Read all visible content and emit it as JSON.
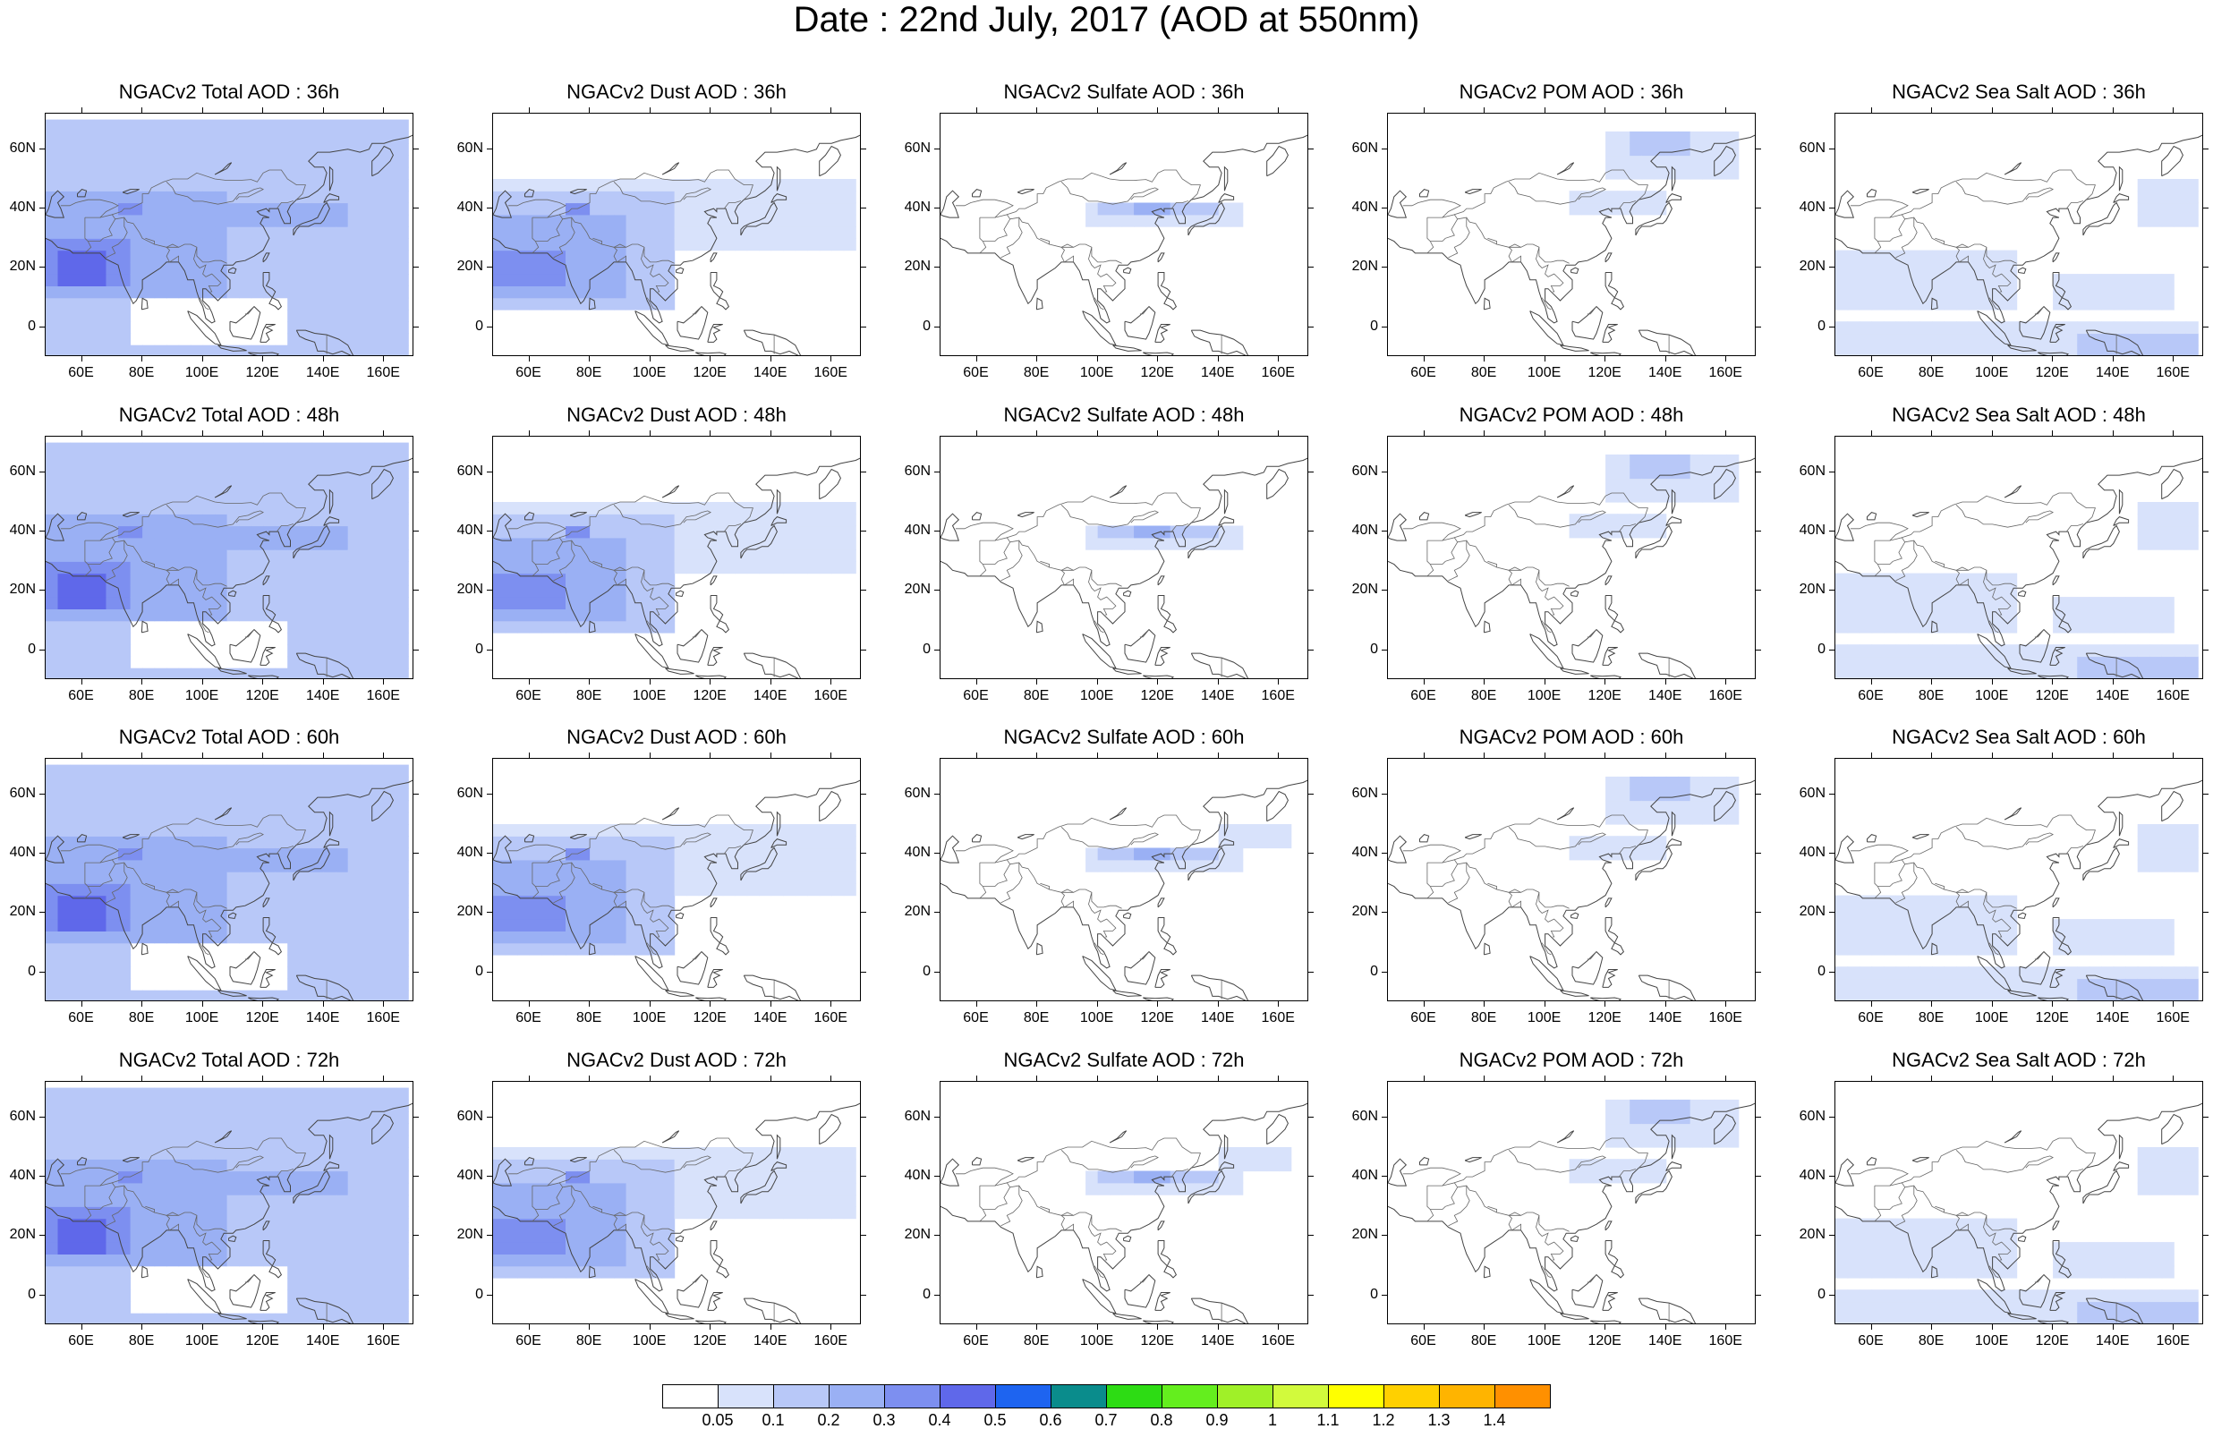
{
  "title": "Date : 22nd July, 2017 (AOD at 550nm)",
  "lat_ticks": [
    "60N",
    "40N",
    "20N",
    "0"
  ],
  "lon_ticks": [
    "60E",
    "80E",
    "100E",
    "120E",
    "140E",
    "160E"
  ],
  "panels": [
    {
      "title": "NGACv2 Total AOD : 36h",
      "species": "total",
      "hour": 36
    },
    {
      "title": "NGACv2 Dust AOD : 36h",
      "species": "dust",
      "hour": 36
    },
    {
      "title": "NGACv2 Sulfate AOD : 36h",
      "species": "sulfate",
      "hour": 36
    },
    {
      "title": "NGACv2 POM AOD : 36h",
      "species": "pom",
      "hour": 36
    },
    {
      "title": "NGACv2 Sea Salt AOD : 36h",
      "species": "seasalt",
      "hour": 36
    },
    {
      "title": "NGACv2 Total AOD : 48h",
      "species": "total",
      "hour": 48
    },
    {
      "title": "NGACv2 Dust AOD : 48h",
      "species": "dust",
      "hour": 48
    },
    {
      "title": "NGACv2 Sulfate AOD : 48h",
      "species": "sulfate",
      "hour": 48
    },
    {
      "title": "NGACv2 POM AOD : 48h",
      "species": "pom",
      "hour": 48
    },
    {
      "title": "NGACv2 Sea Salt AOD : 48h",
      "species": "seasalt",
      "hour": 48
    },
    {
      "title": "NGACv2 Total AOD : 60h",
      "species": "total",
      "hour": 60
    },
    {
      "title": "NGACv2 Dust AOD : 60h",
      "species": "dust",
      "hour": 60
    },
    {
      "title": "NGACv2 Sulfate AOD : 60h",
      "species": "sulfate",
      "hour": 60
    },
    {
      "title": "NGACv2 POM AOD : 60h",
      "species": "pom",
      "hour": 60
    },
    {
      "title": "NGACv2 Sea Salt AOD : 60h",
      "species": "seasalt",
      "hour": 60
    },
    {
      "title": "NGACv2 Total AOD : 72h",
      "species": "total",
      "hour": 72
    },
    {
      "title": "NGACv2 Dust AOD : 72h",
      "species": "dust",
      "hour": 72
    },
    {
      "title": "NGACv2 Sulfate AOD : 72h",
      "species": "sulfate",
      "hour": 72
    },
    {
      "title": "NGACv2 POM AOD : 72h",
      "species": "pom",
      "hour": 72
    },
    {
      "title": "NGACv2 Sea Salt  AOD : 72h",
      "species": "seasalt",
      "hour": 72
    }
  ],
  "colorbar": {
    "colors": [
      "#ffffff",
      "#d8e2fb",
      "#b8c8f8",
      "#9ab0f4",
      "#7d8ff0",
      "#5f68ea",
      "#1e64f0",
      "#0a8c8c",
      "#2ddc14",
      "#64ee1e",
      "#a0f028",
      "#d2fa3c",
      "#ffff00",
      "#ffd000",
      "#ffb400",
      "#ff9000",
      "#ff6400",
      "#ff2000"
    ],
    "labels": [
      "0.05",
      "0.1",
      "0.2",
      "0.3",
      "0.4",
      "0.5",
      "0.6",
      "0.7",
      "0.8",
      "0.9",
      "1",
      "1.1",
      "1.2",
      "1.3",
      "1.4"
    ]
  }
}
